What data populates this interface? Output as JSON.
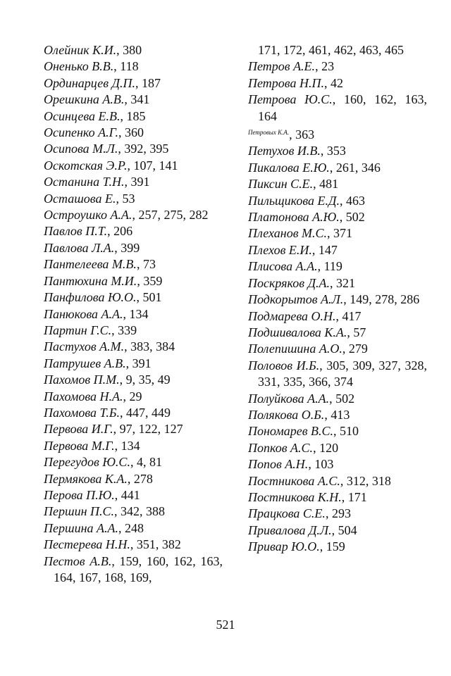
{
  "left_column": [
    {
      "name": "Олейник К.И.",
      "pages": ", 380"
    },
    {
      "name": "Оненько В.В.",
      "pages": ", 118"
    },
    {
      "name": "Ординарцев Д.П.",
      "pages": ", 187"
    },
    {
      "name": "Орешкина А.В.",
      "pages": ", 341"
    },
    {
      "name": "Осинцева Е.В.",
      "pages": ", 185"
    },
    {
      "name": "Осипенко А.Г.",
      "pages": ", 360"
    },
    {
      "name": "Осипова М.Л.",
      "pages": ", 392, 395"
    },
    {
      "name": "Оскотская Э.Р.",
      "pages": ", 107, 141"
    },
    {
      "name": "Останина Т.Н.",
      "pages": ", 391"
    },
    {
      "name": "Осташова Е.",
      "pages": ", 53"
    },
    {
      "name": "Остроушко А.А.",
      "pages": ", 257, 275, 282"
    },
    {
      "name": "Павлов П.Т.",
      "pages": ", 206"
    },
    {
      "name": "Павлова Л.А.",
      "pages": ", 399"
    },
    {
      "name": "Пантелеева М.В.",
      "pages": ", 73"
    },
    {
      "name": "Пантюхина М.И.",
      "pages": ", 359"
    },
    {
      "name": "Панфилова Ю.О.",
      "pages": ", 501"
    },
    {
      "name": "Панюкова А.А.",
      "pages": ", 134"
    },
    {
      "name": "Партин Г.С.",
      "pages": ", 339"
    },
    {
      "name": "Пастухов А.М.",
      "pages": ", 383, 384"
    },
    {
      "name": "Патрушев А.В.",
      "pages": ", 391"
    },
    {
      "name": "Пахомов П.М.",
      "pages": ", 9, 35, 49"
    },
    {
      "name": "Пахомова Н.А.",
      "pages": ", 29"
    },
    {
      "name": "Пахомова Т.Б.",
      "pages": ", 447, 449"
    },
    {
      "name": "Первова И.Г.",
      "pages": ", 97, 122, 127"
    },
    {
      "name": "Первова М.Г.",
      "pages": ", 134"
    },
    {
      "name": "Перегудов Ю.С.",
      "pages": ", 4, 81"
    },
    {
      "name": "Пермякова К.А.",
      "pages": ", 278"
    },
    {
      "name": "Перова П.Ю.",
      "pages": ", 441"
    },
    {
      "name": "Першин П.С.",
      "pages": ", 342, 388"
    },
    {
      "name": "Першина А.А.",
      "pages": ", 248"
    },
    {
      "name": "Пестерева Н.Н.",
      "pages": ", 351, 382"
    },
    {
      "name": "Пестов А.В.",
      "pages": ", 159, 160, 162, 163, 164, 167, 168, 169,"
    }
  ],
  "right_column": [
    {
      "name": "",
      "pages": "171, 172, 461, 462, 463, 465",
      "continuation": true
    },
    {
      "name": "Петров А.Е.",
      "pages": ", 23"
    },
    {
      "name": "Петрова Н.П.",
      "pages": ", 42"
    },
    {
      "name": "Петрова Ю.С.",
      "pages": ", 160, 162, 163, 164"
    },
    {
      "name": "Петровых К.А.",
      "pages": ", 363",
      "small_name": true
    },
    {
      "name": "Петухов И.В.",
      "pages": ", 353"
    },
    {
      "name": "Пикалова Е.Ю.",
      "pages": ", 261, 346"
    },
    {
      "name": "Пиксин С.Е.",
      "pages": ", 481"
    },
    {
      "name": "Пильщикова Е.Д.",
      "pages": ", 463"
    },
    {
      "name": "Платонова А.Ю.",
      "pages": ", 502"
    },
    {
      "name": "Плеханов М.С.",
      "pages": ", 371"
    },
    {
      "name": "Плехов Е.И.",
      "pages": ", 147"
    },
    {
      "name": "Плисова А.А.",
      "pages": ", 119"
    },
    {
      "name": "Поскряков Д.А.",
      "pages": ", 321"
    },
    {
      "name": "Подкорытов А.Л.",
      "pages": ", 149, 278, 286"
    },
    {
      "name": "Подмарева О.Н.",
      "pages": ", 417"
    },
    {
      "name": "Подшивалова К.А.",
      "pages": ", 57"
    },
    {
      "name": "Полепишина А.О.",
      "pages": ", 279"
    },
    {
      "name": "Половов И.Б.",
      "pages": ", 305, 309, 327, 328, 331, 335, 366, 374"
    },
    {
      "name": "Полуйкова А.А.",
      "pages": ", 502"
    },
    {
      "name": "Полякова О.Б.",
      "pages": ", 413"
    },
    {
      "name": "Пономарев В.С.",
      "pages": ", 510"
    },
    {
      "name": "Попков А.С.",
      "pages": ", 120"
    },
    {
      "name": "Попов А.Н.",
      "pages": ", 103"
    },
    {
      "name": "Постникова А.С.",
      "pages": ", 312, 318"
    },
    {
      "name": "Постникова К.Н.",
      "pages": ", 171"
    },
    {
      "name": "Працкова С.Е.",
      "pages": ", 293"
    },
    {
      "name": "Привалова Д.Л.",
      "pages": ", 504"
    },
    {
      "name": "Привар Ю.О.",
      "pages": ", 159"
    }
  ],
  "page_number": "521"
}
